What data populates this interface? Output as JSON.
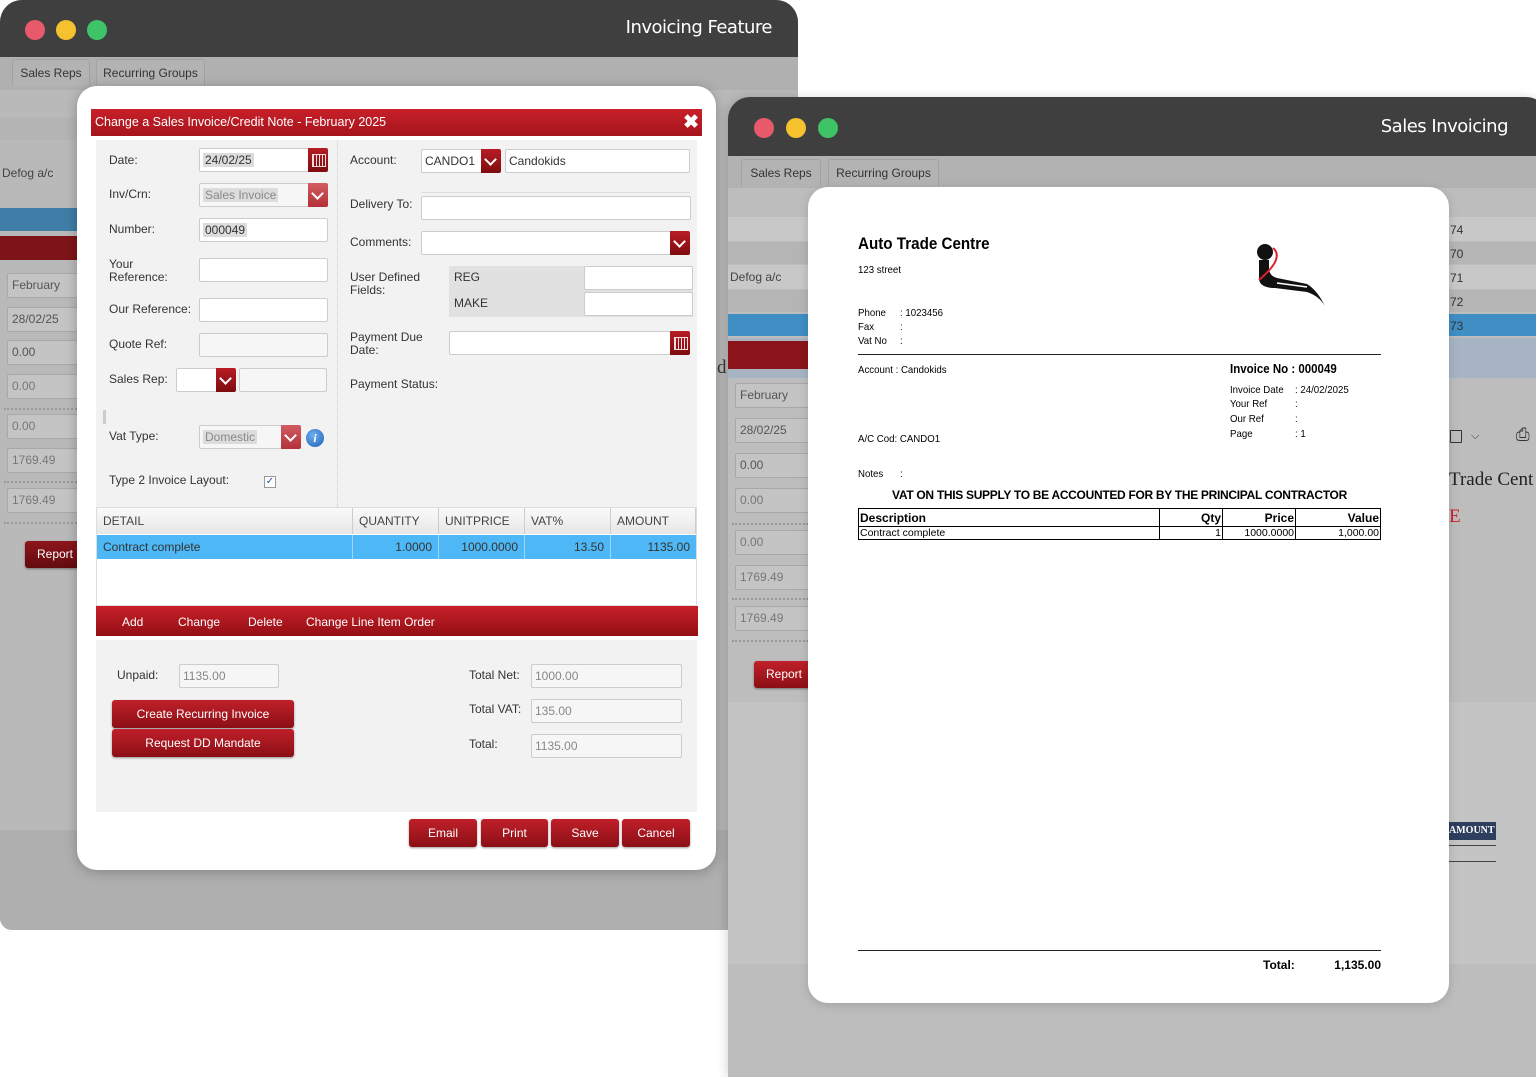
{
  "window1": {
    "title": "Invoicing Feature",
    "tabs": [
      "Sales Reps",
      "Recurring Groups"
    ],
    "background": {
      "label": "Defog a/c",
      "fields": [
        "February",
        "28/02/25",
        "0.00",
        "0.00",
        "0.00",
        "1769.49",
        "1769.49"
      ],
      "report_label": "Report"
    }
  },
  "dialog": {
    "title": "Change a Sales Invoice/Credit Note - February 2025",
    "left": {
      "date_label": "Date:",
      "date_value": "24/02/25",
      "invcrn_label": "Inv/Crn:",
      "invcrn_value": "Sales Invoice",
      "number_label": "Number:",
      "number_value": "000049",
      "your_ref_label_1": "Your",
      "your_ref_label_2": "Reference:",
      "your_ref_value": "",
      "our_ref_label": "Our Reference:",
      "our_ref_value": "",
      "quote_ref_label": "Quote Ref:",
      "quote_ref_value": "",
      "sales_rep_label": "Sales Rep:",
      "vat_type_label": "Vat Type:",
      "vat_type_value": "Domestic",
      "type2_label": "Type 2 Invoice Layout:",
      "type2_checked": true
    },
    "right": {
      "account_label": "Account:",
      "account_code": "CANDO1",
      "account_name": "Candokids",
      "delivery_label": "Delivery To:",
      "delivery_value": "",
      "comments_label": "Comments:",
      "comments_value": "",
      "udf_label_1": "User Defined",
      "udf_label_2": "Fields:",
      "udf": [
        {
          "name": "REG",
          "value": ""
        },
        {
          "name": "MAKE",
          "value": ""
        }
      ],
      "payment_due_label_1": "Payment Due",
      "payment_due_label_2": "Date:",
      "payment_due_value": "",
      "payment_status_label": "Payment Status:"
    },
    "grid": {
      "columns": [
        "DETAIL",
        "QUANTITY",
        "UNITPRICE",
        "VAT%",
        "AMOUNT"
      ],
      "rows": [
        [
          "Contract complete",
          "1.0000",
          "1000.0000",
          "13.50",
          "1135.00"
        ]
      ]
    },
    "toolbar": [
      "Add",
      "Change",
      "Delete",
      "Change Line Item Order"
    ],
    "totals": {
      "unpaid_label": "Unpaid:",
      "unpaid_value": "1135.00",
      "net_label": "Total Net:",
      "net_value": "1000.00",
      "vat_label": "Total VAT:",
      "vat_value": "135.00",
      "total_label": "Total:",
      "total_value": "1135.00"
    },
    "create_recurring_label": "Create Recurring Invoice",
    "request_dd_label": "Request DD Mandate",
    "footer": [
      "Email",
      "Print",
      "Save",
      "Cancel"
    ]
  },
  "window2": {
    "title": "Sales Invoicing",
    "tabs": [
      "Sales Reps",
      "Recurring Groups"
    ],
    "background": {
      "label": "Defog a/c",
      "letter": "d",
      "fields": [
        "February",
        "28/02/25",
        "0.00",
        "0.00",
        "0.00",
        "1769.49",
        "1769.49"
      ],
      "report_label": "Report",
      "right_numbers": [
        "74",
        "70",
        "71",
        "72",
        "73"
      ],
      "right_text": "Trade Cent",
      "right_red": "E",
      "right_badge": "AMOUNT"
    }
  },
  "invoice": {
    "company": "Auto Trade Centre",
    "address": "123 street",
    "phone_label": "Phone",
    "phone": ": 1023456",
    "fax_label": "Fax",
    "fax": ":",
    "vat_label": "Vat No",
    "vat": ":",
    "account_line": "Account : Candokids",
    "ac_code_line": "A/C Cod: CANDO1",
    "notes_label": "Notes",
    "notes": ":",
    "invoice_no": "Invoice No : 000049",
    "meta": [
      {
        "label": "Invoice Date",
        "value": ": 24/02/2025"
      },
      {
        "label": "Your Ref",
        "value": ":"
      },
      {
        "label": "Our Ref",
        "value": ":"
      },
      {
        "label": "Page",
        "value": ": 1"
      }
    ],
    "notice": "VAT ON THIS SUPPLY TO BE ACCOUNTED FOR BY THE PRINCIPAL CONTRACTOR",
    "table": {
      "columns": [
        "Description",
        "Qty",
        "Price",
        "Value"
      ],
      "rows": [
        [
          "Contract complete",
          "1",
          "1000.0000",
          "1,000.00"
        ]
      ]
    },
    "total_label": "Total:",
    "total_value": "1,135.00"
  },
  "colors": {
    "accent_red": "#b81c24",
    "selection_blue": "#4db8f5",
    "titlebar": "#3f3f3f"
  }
}
